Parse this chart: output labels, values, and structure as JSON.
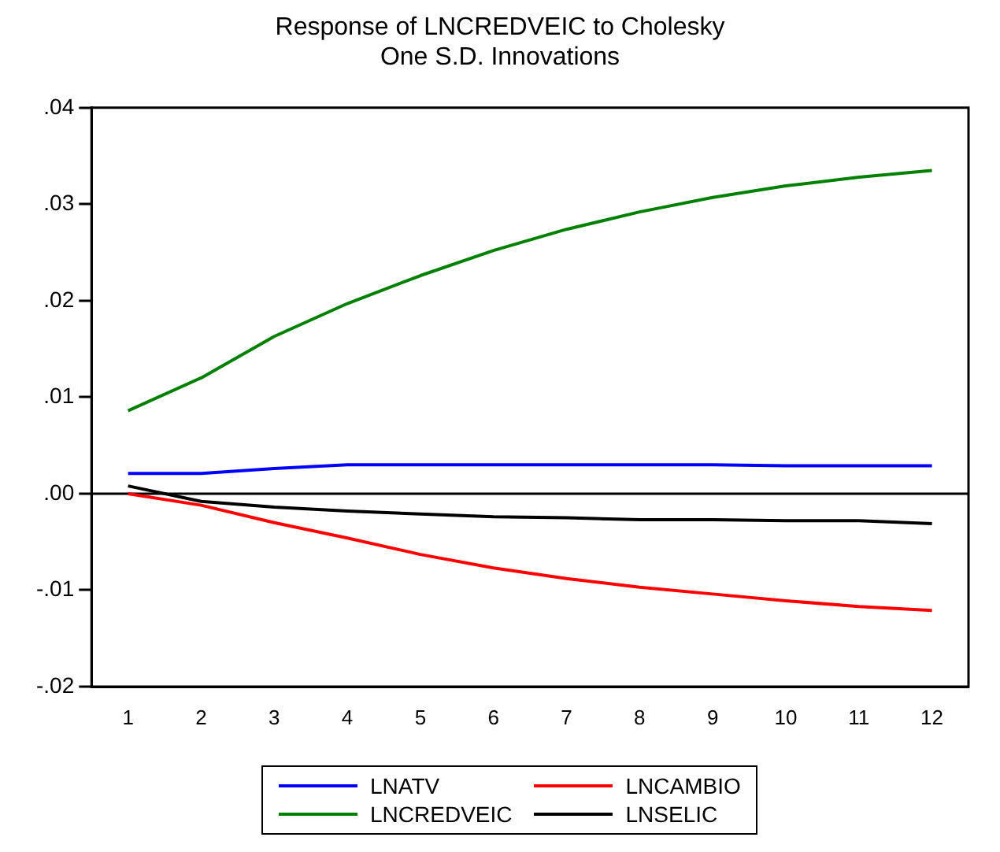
{
  "chart_data": {
    "type": "line",
    "title": "Response of LNCREDVEIC to Cholesky\nOne S.D. Innovations",
    "categories": [
      "1",
      "2",
      "3",
      "4",
      "5",
      "6",
      "7",
      "8",
      "9",
      "10",
      "11",
      "12"
    ],
    "ylim": [
      -0.02,
      0.04
    ],
    "yticks": [
      {
        "value": -0.02,
        "label": "-.02"
      },
      {
        "value": -0.01,
        "label": "-.01"
      },
      {
        "value": 0,
        "label": ".00"
      },
      {
        "value": 0.01,
        "label": ".01"
      },
      {
        "value": 0.02,
        "label": ".02"
      },
      {
        "value": 0.03,
        "label": ".03"
      },
      {
        "value": 0.04,
        "label": ".04"
      }
    ],
    "grid": false,
    "legend": "bottom",
    "marker": "none",
    "line_style": "solid",
    "ref_lines": [
      {
        "axis": "y",
        "value": 0,
        "color": "#000000"
      }
    ],
    "series": [
      {
        "name": "LNATV",
        "color": "#0000ff",
        "values": [
          0.0021,
          0.0021,
          0.0026,
          0.003,
          0.003,
          0.003,
          0.003,
          0.003,
          0.003,
          0.0029,
          0.0029,
          0.0029
        ]
      },
      {
        "name": "LNCAMBIO",
        "color": "#ff0000",
        "values": [
          0.0,
          -0.0012,
          -0.003,
          -0.0046,
          -0.0063,
          -0.0077,
          -0.0088,
          -0.0097,
          -0.0104,
          -0.0111,
          -0.0117,
          -0.0121
        ]
      },
      {
        "name": "LNCREDVEIC",
        "color": "#008000",
        "values": [
          0.0086,
          0.012,
          0.0163,
          0.0197,
          0.0226,
          0.0252,
          0.0274,
          0.0292,
          0.0307,
          0.0319,
          0.0328,
          0.0335
        ]
      },
      {
        "name": "LNSELIC",
        "color": "#000000",
        "values": [
          0.0008,
          -0.0008,
          -0.0014,
          -0.0018,
          -0.0021,
          -0.0024,
          -0.0025,
          -0.0027,
          -0.0027,
          -0.0028,
          -0.0028,
          -0.0031
        ]
      }
    ]
  }
}
